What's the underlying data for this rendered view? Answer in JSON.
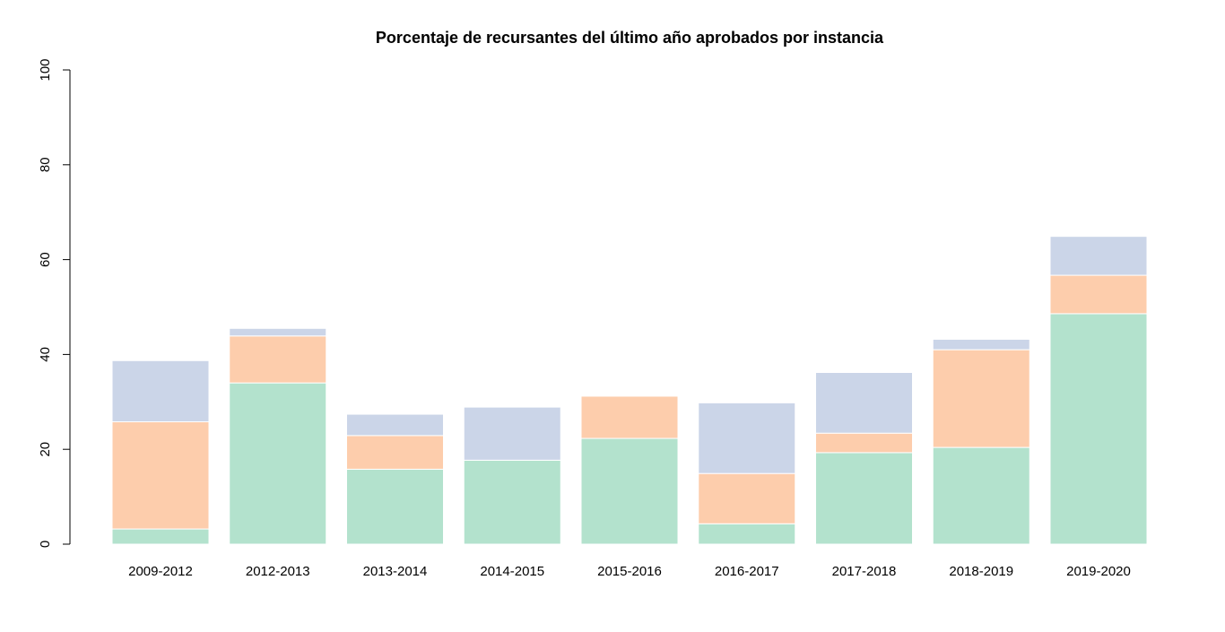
{
  "chart_data": {
    "type": "bar",
    "stacked": true,
    "title": "Porcentaje de recursantes del último año aprobados por instancia",
    "xlabel": "",
    "ylabel": "",
    "ylim": [
      0,
      100
    ],
    "yticks": [
      0,
      20,
      40,
      60,
      80,
      100
    ],
    "grid": false,
    "legend": "none",
    "categories": [
      "2009-2012",
      "2012-2013",
      "2013-2014",
      "2014-2015",
      "2015-2016",
      "2016-2017",
      "2017-2018",
      "2018-2019",
      "2019-2020"
    ],
    "series": [
      {
        "color": "#b3e2cd",
        "values": [
          3.2,
          34.0,
          15.8,
          17.7,
          22.3,
          4.3,
          19.3,
          20.4,
          48.6
        ]
      },
      {
        "color": "#fdcdac",
        "values": [
          22.6,
          9.9,
          7.1,
          0.0,
          8.9,
          10.6,
          4.1,
          20.6,
          8.1
        ]
      },
      {
        "color": "#cbd5e8",
        "values": [
          12.9,
          1.6,
          4.5,
          11.2,
          0.0,
          14.9,
          12.8,
          2.2,
          8.2
        ]
      }
    ]
  }
}
